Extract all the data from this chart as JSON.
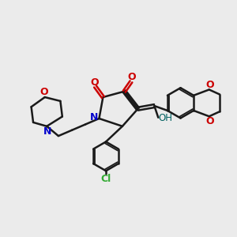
{
  "bg_color": "#ebebeb",
  "bond_color": "#1a1a1a",
  "N_color": "#0000cc",
  "O_color": "#cc0000",
  "Cl_color": "#33aa33",
  "OH_color": "#006060",
  "figsize": [
    3.0,
    3.0
  ],
  "dpi": 100,
  "xlim": [
    0,
    12
  ],
  "ylim": [
    0,
    12
  ]
}
